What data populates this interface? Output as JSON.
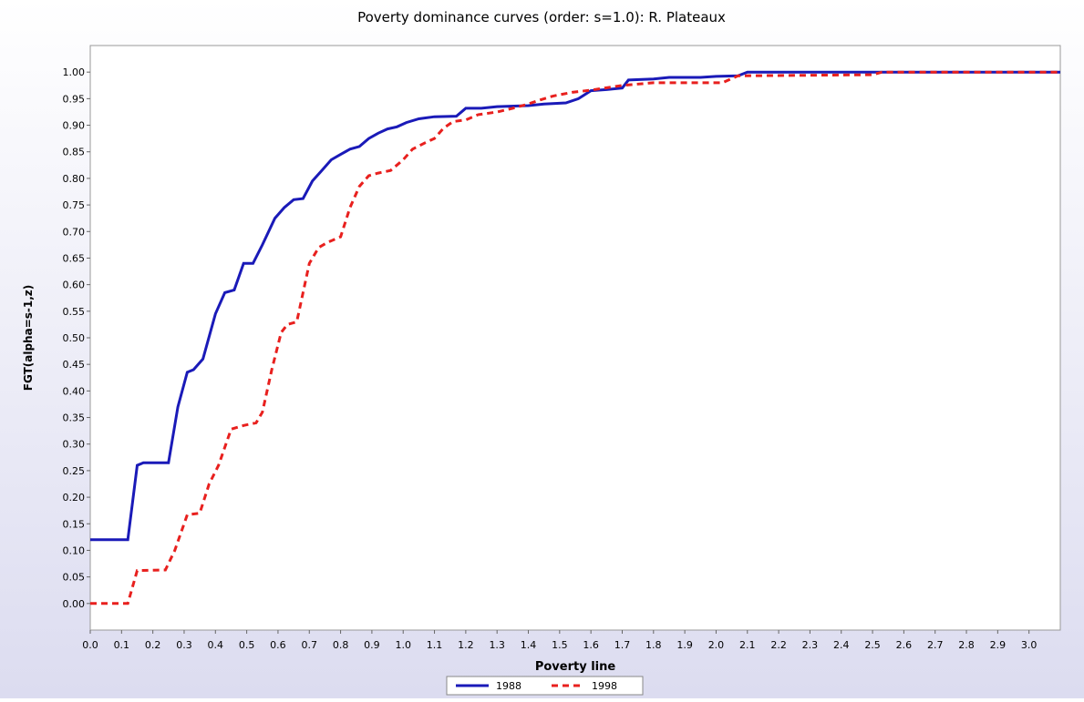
{
  "chart_data": {
    "type": "line",
    "title": "Poverty dominance curves (order: s=1.0): R. Plateaux",
    "x_label": "Poverty line",
    "y_label": "FGT(alpha=s-1,z)",
    "xlim": [
      0,
      3.1
    ],
    "ylim": [
      -0.05,
      1.05
    ],
    "xticks": [
      {
        "value": 0,
        "label": "0.0"
      },
      {
        "value": 0.1,
        "label": "0.1"
      },
      {
        "value": 0.2,
        "label": "0.2"
      },
      {
        "value": 0.3,
        "label": "0.3"
      },
      {
        "value": 0.4,
        "label": "0.4"
      },
      {
        "value": 0.5,
        "label": "0.5"
      },
      {
        "value": 0.6,
        "label": "0.6"
      },
      {
        "value": 0.7,
        "label": "0.7"
      },
      {
        "value": 0.8,
        "label": "0.8"
      },
      {
        "value": 0.9,
        "label": "0.9"
      },
      {
        "value": 1,
        "label": "1.0"
      },
      {
        "value": 1.1,
        "label": "1.1"
      },
      {
        "value": 1.2,
        "label": "1.2"
      },
      {
        "value": 1.3,
        "label": "1.3"
      },
      {
        "value": 1.4,
        "label": "1.4"
      },
      {
        "value": 1.5,
        "label": "1.5"
      },
      {
        "value": 1.6,
        "label": "1.6"
      },
      {
        "value": 1.7,
        "label": "1.7"
      },
      {
        "value": 1.8,
        "label": "1.8"
      },
      {
        "value": 1.9,
        "label": "1.9"
      },
      {
        "value": 2,
        "label": "2.0"
      },
      {
        "value": 2.1,
        "label": "2.1"
      },
      {
        "value": 2.2,
        "label": "2.2"
      },
      {
        "value": 2.3,
        "label": "2.3"
      },
      {
        "value": 2.4,
        "label": "2.4"
      },
      {
        "value": 2.5,
        "label": "2.5"
      },
      {
        "value": 2.6,
        "label": "2.6"
      },
      {
        "value": 2.7,
        "label": "2.7"
      },
      {
        "value": 2.8,
        "label": "2.8"
      },
      {
        "value": 2.9,
        "label": "2.9"
      },
      {
        "value": 3,
        "label": "3.0"
      }
    ],
    "yticks": [
      {
        "value": 0,
        "label": "0.00"
      },
      {
        "value": 0.05,
        "label": "0.05"
      },
      {
        "value": 0.1,
        "label": "0.10"
      },
      {
        "value": 0.15,
        "label": "0.15"
      },
      {
        "value": 0.2,
        "label": "0.20"
      },
      {
        "value": 0.25,
        "label": "0.25"
      },
      {
        "value": 0.3,
        "label": "0.30"
      },
      {
        "value": 0.35,
        "label": "0.35"
      },
      {
        "value": 0.4,
        "label": "0.40"
      },
      {
        "value": 0.45,
        "label": "0.45"
      },
      {
        "value": 0.5,
        "label": "0.50"
      },
      {
        "value": 0.55,
        "label": "0.55"
      },
      {
        "value": 0.6,
        "label": "0.60"
      },
      {
        "value": 0.65,
        "label": "0.65"
      },
      {
        "value": 0.7,
        "label": "0.70"
      },
      {
        "value": 0.75,
        "label": "0.75"
      },
      {
        "value": 0.8,
        "label": "0.80"
      },
      {
        "value": 0.85,
        "label": "0.85"
      },
      {
        "value": 0.9,
        "label": "0.90"
      },
      {
        "value": 0.95,
        "label": "0.95"
      },
      {
        "value": 1,
        "label": "1.00"
      }
    ],
    "series": [
      {
        "name": "1988",
        "color": "#1a1ab8",
        "dash": false,
        "x": [
          0,
          0.12,
          0.15,
          0.17,
          0.25,
          0.28,
          0.31,
          0.33,
          0.36,
          0.4,
          0.43,
          0.46,
          0.49,
          0.52,
          0.55,
          0.59,
          0.62,
          0.65,
          0.68,
          0.71,
          0.74,
          0.77,
          0.8,
          0.83,
          0.86,
          0.89,
          0.92,
          0.95,
          0.98,
          1.01,
          1.05,
          1.1,
          1.17,
          1.2,
          1.25,
          1.3,
          1.4,
          1.45,
          1.52,
          1.56,
          1.6,
          1.65,
          1.7,
          1.72,
          1.8,
          1.85,
          1.95,
          2,
          2.07,
          2.1,
          3.1
        ],
        "values": [
          0.12,
          0.12,
          0.26,
          0.265,
          0.265,
          0.37,
          0.435,
          0.44,
          0.46,
          0.545,
          0.585,
          0.59,
          0.64,
          0.64,
          0.675,
          0.725,
          0.745,
          0.76,
          0.762,
          0.795,
          0.815,
          0.835,
          0.845,
          0.855,
          0.86,
          0.875,
          0.885,
          0.893,
          0.897,
          0.905,
          0.912,
          0.916,
          0.917,
          0.932,
          0.932,
          0.935,
          0.937,
          0.94,
          0.942,
          0.95,
          0.965,
          0.967,
          0.97,
          0.985,
          0.987,
          0.99,
          0.99,
          0.992,
          0.993,
          1,
          1
        ]
      },
      {
        "name": "1998",
        "color": "#e8201e",
        "dash": true,
        "x": [
          0,
          0.12,
          0.15,
          0.24,
          0.27,
          0.31,
          0.35,
          0.38,
          0.41,
          0.45,
          0.49,
          0.53,
          0.55,
          0.58,
          0.61,
          0.63,
          0.66,
          0.7,
          0.73,
          0.76,
          0.8,
          0.83,
          0.86,
          0.89,
          0.92,
          0.96,
          1,
          1.03,
          1.07,
          1.1,
          1.13,
          1.16,
          1.2,
          1.24,
          1.3,
          1.35,
          1.4,
          1.44,
          1.48,
          1.54,
          1.6,
          1.7,
          1.8,
          2.02,
          2.07,
          2.5,
          2.53,
          3.1
        ],
        "values": [
          0,
          0,
          0.062,
          0.063,
          0.1,
          0.167,
          0.17,
          0.225,
          0.26,
          0.328,
          0.335,
          0.34,
          0.36,
          0.44,
          0.51,
          0.525,
          0.53,
          0.64,
          0.67,
          0.68,
          0.69,
          0.745,
          0.785,
          0.805,
          0.81,
          0.815,
          0.835,
          0.855,
          0.867,
          0.875,
          0.895,
          0.907,
          0.91,
          0.92,
          0.925,
          0.932,
          0.94,
          0.948,
          0.955,
          0.962,
          0.966,
          0.975,
          0.98,
          0.98,
          0.993,
          0.995,
          1,
          1
        ]
      }
    ]
  }
}
